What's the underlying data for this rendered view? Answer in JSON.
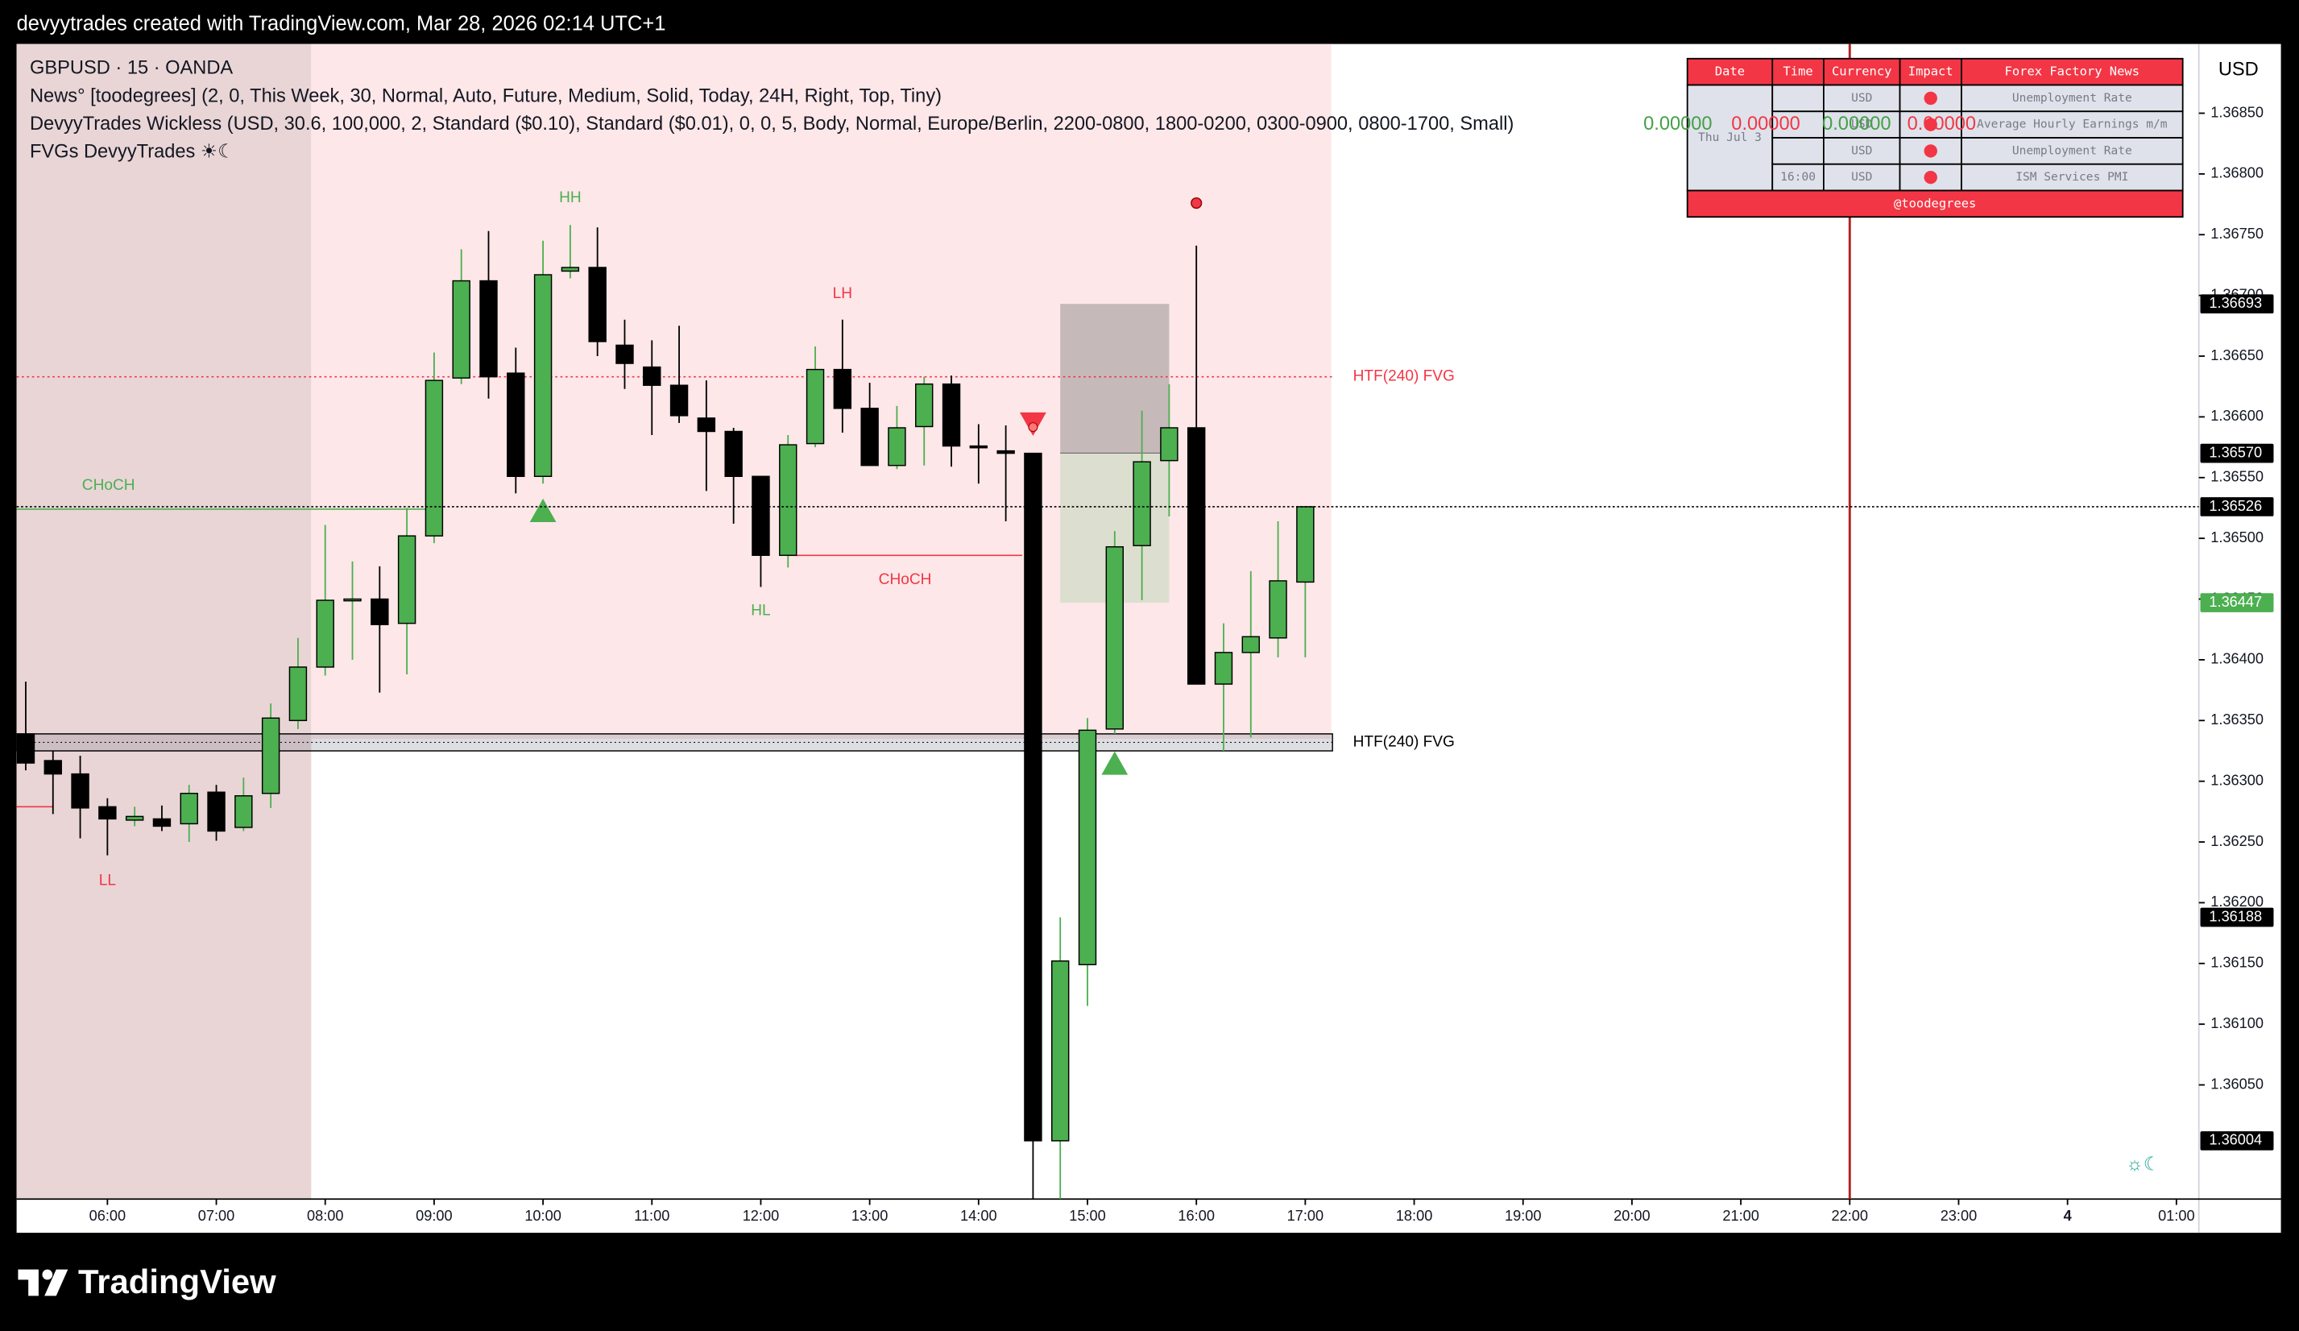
{
  "header": {
    "text": "devyytrades created with TradingView.com, Mar 28, 2026 02:14 UTC+1"
  },
  "chart_data": {
    "type": "candlestick",
    "title": "GBPUSD · 15 · OANDA",
    "legend_lines": [
      "News° [toodegrees] (2, 0, This Week, 30, Normal, Auto, Future, Medium, Solid, Today, 24H, Right, Top, Tiny)",
      "DevyyTrades Wickless (USD, 30.6, 100,000, 2, Standard ($0.10), Standard ($0.01), 0, 0, 5, Body, Normal, Europe/Berlin, 2200-0800, 1800-0200, 0300-0900, 0800-1700, Small)",
      "FVGs DevyyTrades ☀☾"
    ],
    "legend_values": [
      {
        "label": "0.00000",
        "color": "#43a047"
      },
      {
        "label": "0.00000",
        "color": "#f23645"
      },
      {
        "label": "0.00000",
        "color": "#43a047"
      },
      {
        "label": "0.00000",
        "color": "#f23645"
      }
    ],
    "currency": "USD",
    "up_color": "#4caf50",
    "down_color": "#000000",
    "x": [
      5.25,
      5.5,
      5.75,
      6,
      6.25,
      6.5,
      6.75,
      7,
      7.25,
      7.5,
      7.75,
      8,
      8.25,
      8.5,
      8.75,
      9,
      9.25,
      9.5,
      9.75,
      10,
      10.25,
      10.5,
      10.75,
      11,
      11.25,
      11.5,
      11.75,
      12,
      12.25,
      12.5,
      12.75,
      13,
      13.25,
      13.5,
      13.75,
      14,
      14.25,
      14.5,
      14.75,
      15,
      15.25,
      15.5,
      15.75,
      16,
      16.25,
      16.5,
      16.75,
      17
    ],
    "open": [
      1.36339,
      1.36317,
      1.36306,
      1.36279,
      1.36268,
      1.36269,
      1.36265,
      1.36291,
      1.36262,
      1.3629,
      1.3635,
      1.36394,
      1.36449,
      1.3645,
      1.3643,
      1.36502,
      1.36632,
      1.36712,
      1.36636,
      1.36551,
      1.3672,
      1.36723,
      1.36659,
      1.36641,
      1.36626,
      1.36599,
      1.36588,
      1.36551,
      1.36486,
      1.36578,
      1.36639,
      1.36607,
      1.3656,
      1.36592,
      1.36627,
      1.36576,
      1.36572,
      1.3657,
      1.36004,
      1.36149,
      1.36343,
      1.36494,
      1.36564,
      1.36591,
      1.3638,
      1.36406,
      1.36418,
      1.36464
    ],
    "high": [
      1.36382,
      1.36325,
      1.36321,
      1.36286,
      1.36279,
      1.3628,
      1.36297,
      1.36297,
      1.36303,
      1.36364,
      1.36418,
      1.36511,
      1.36481,
      1.36477,
      1.36525,
      1.36653,
      1.36738,
      1.36753,
      1.36657,
      1.36745,
      1.36758,
      1.36756,
      1.3668,
      1.36663,
      1.36675,
      1.3663,
      1.36591,
      1.36551,
      1.36585,
      1.36658,
      1.3668,
      1.36628,
      1.36609,
      1.36633,
      1.36634,
      1.36594,
      1.36593,
      1.3657,
      1.36188,
      1.36352,
      1.36506,
      1.36605,
      1.36627,
      1.36741,
      1.3643,
      1.36473,
      1.36514,
      1.36526
    ],
    "low": [
      1.36309,
      1.36273,
      1.36253,
      1.36239,
      1.36263,
      1.36259,
      1.3625,
      1.36251,
      1.36259,
      1.36278,
      1.36343,
      1.36387,
      1.364,
      1.36373,
      1.36388,
      1.36496,
      1.36627,
      1.36615,
      1.36537,
      1.36545,
      1.36714,
      1.3665,
      1.36623,
      1.36585,
      1.36595,
      1.36539,
      1.36512,
      1.3646,
      1.36476,
      1.36575,
      1.36587,
      1.3656,
      1.36557,
      1.3656,
      1.36559,
      1.36545,
      1.36514,
      1.35956,
      1.35956,
      1.36115,
      1.36339,
      1.36449,
      1.36518,
      1.3638,
      1.36325,
      1.36336,
      1.36402,
      1.36402
    ],
    "close": [
      1.36315,
      1.36306,
      1.36278,
      1.36269,
      1.36271,
      1.36263,
      1.3629,
      1.36259,
      1.36288,
      1.36352,
      1.36394,
      1.36449,
      1.3645,
      1.36429,
      1.36502,
      1.3663,
      1.36712,
      1.36633,
      1.36551,
      1.36717,
      1.36723,
      1.36662,
      1.36644,
      1.36626,
      1.36601,
      1.36588,
      1.36551,
      1.36486,
      1.36577,
      1.36639,
      1.36607,
      1.3656,
      1.36591,
      1.36627,
      1.36576,
      1.36575,
      1.3657,
      1.36004,
      1.36152,
      1.36342,
      1.36493,
      1.36563,
      1.36591,
      1.3638,
      1.36406,
      1.36419,
      1.36465,
      1.36526
    ],
    "xlim": [
      5.166,
      25.206
    ],
    "xticks": [
      {
        "value": 6,
        "label": "06:00"
      },
      {
        "value": 7,
        "label": "07:00"
      },
      {
        "value": 8,
        "label": "08:00"
      },
      {
        "value": 9,
        "label": "09:00"
      },
      {
        "value": 10,
        "label": "10:00"
      },
      {
        "value": 11,
        "label": "11:00"
      },
      {
        "value": 12,
        "label": "12:00"
      },
      {
        "value": 13,
        "label": "13:00"
      },
      {
        "value": 14,
        "label": "14:00"
      },
      {
        "value": 15,
        "label": "15:00"
      },
      {
        "value": 16,
        "label": "16:00"
      },
      {
        "value": 17,
        "label": "17:00"
      },
      {
        "value": 18,
        "label": "18:00"
      },
      {
        "value": 19,
        "label": "19:00"
      },
      {
        "value": 20,
        "label": "20:00"
      },
      {
        "value": 21,
        "label": "21:00"
      },
      {
        "value": 22,
        "label": "22:00"
      },
      {
        "value": 23,
        "label": "23:00"
      },
      {
        "value": 24,
        "label": "4"
      },
      {
        "value": 25,
        "label": "01:00"
      }
    ],
    "ylim": [
      1.35956,
      1.36907
    ],
    "yticks": [
      {
        "value": 1.3685,
        "label": "1.36850"
      },
      {
        "value": 1.368,
        "label": "1.36800"
      },
      {
        "value": 1.3675,
        "label": "1.36750"
      },
      {
        "value": 1.367,
        "label": "1.36700"
      },
      {
        "value": 1.3665,
        "label": "1.36650"
      },
      {
        "value": 1.366,
        "label": "1.36600"
      },
      {
        "value": 1.3655,
        "label": "1.36550"
      },
      {
        "value": 1.365,
        "label": "1.36500"
      },
      {
        "value": 1.3645,
        "label": "1.36450"
      },
      {
        "value": 1.364,
        "label": "1.36400"
      },
      {
        "value": 1.3635,
        "label": "1.36350"
      },
      {
        "value": 1.363,
        "label": "1.36300"
      },
      {
        "value": 1.3625,
        "label": "1.36250"
      },
      {
        "value": 1.362,
        "label": "1.36200"
      },
      {
        "value": 1.3615,
        "label": "1.36150"
      },
      {
        "value": 1.361,
        "label": "1.36100"
      },
      {
        "value": 1.3605,
        "label": "1.36050"
      }
    ],
    "price_labels": [
      {
        "value": 1.36693,
        "color": "#000000"
      },
      {
        "value": 1.3657,
        "label": "1.36570",
        "color": "#000000"
      },
      {
        "value": 1.36526,
        "color": "#000000",
        "line": "dotted"
      },
      {
        "value": 1.36447,
        "color": "#4caf50"
      },
      {
        "value": 1.36188,
        "color": "#000000"
      },
      {
        "value": 1.36004,
        "color": "#000000"
      }
    ],
    "levels": [
      {
        "price": 1.36633,
        "from": 5.166,
        "to": 17.25,
        "color": "#f23645",
        "style": "dotted",
        "label": "HTF(240) FVG",
        "label_side": "right"
      },
      {
        "price": 1.36524,
        "from": 3.1,
        "to": 8.92,
        "color": "#4caf50",
        "style": "solid",
        "label": "CHoCH",
        "label_side": "above"
      },
      {
        "price": 1.36486,
        "from": 12.25,
        "to": 14.4,
        "color": "#f23645",
        "style": "solid",
        "label": "CHoCH",
        "label_side": "below"
      },
      {
        "price": 1.36279,
        "from": 5.166,
        "to": 5.5,
        "color": "#f23645",
        "style": "solid"
      }
    ],
    "bands": [
      {
        "top": 1.36339,
        "bottom": 1.36325,
        "from": 5.166,
        "to": 17.25,
        "color": "#000000",
        "label": "HTF(240) FVG"
      }
    ],
    "boxes": [
      {
        "top": 1.36693,
        "bottom": 1.3657,
        "from": 14.75,
        "to": 15.75,
        "color": "#c6b9ba"
      },
      {
        "top": 1.3657,
        "bottom": 1.36447,
        "from": 14.75,
        "to": 15.75,
        "color": "#dcdfcf"
      }
    ],
    "swing_labels": [
      {
        "text": "HH",
        "x": 10.25,
        "price": 1.3678,
        "color": "#4caf50"
      },
      {
        "text": "LH",
        "x": 12.75,
        "price": 1.36701,
        "color": "#f23645"
      },
      {
        "text": "HL",
        "x": 12.0,
        "price": 1.3644,
        "color": "#4caf50"
      },
      {
        "text": "LL",
        "x": 6.0,
        "price": 1.36218,
        "color": "#f23645"
      }
    ],
    "markers": [
      {
        "shape": "triangle-up",
        "x": 10.0,
        "price": 1.36523,
        "color": "#4caf50"
      },
      {
        "shape": "triangle-up",
        "x": 15.25,
        "price": 1.36315,
        "color": "#4caf50"
      },
      {
        "shape": "triangle-down",
        "x": 14.5,
        "price": 1.36594,
        "color": "#f23645"
      },
      {
        "shape": "dot",
        "x": 16.0,
        "price": 1.36776,
        "color": "#f23645"
      }
    ],
    "vline": {
      "x": 22,
      "color": "#b22222"
    }
  },
  "news_table": {
    "columns": [
      "Date",
      "Time",
      "Currency",
      "Impact",
      "Forex Factory News"
    ],
    "date": "Thu Jul 3",
    "rows": [
      {
        "currency": "USD",
        "news": "Unemployment Rate"
      },
      {
        "currency": "USD",
        "news": "Average Hourly Earnings m/m"
      },
      {
        "currency": "USD",
        "news": "Unemployment Rate"
      },
      {
        "time": "16:00",
        "currency": "USD",
        "news": "ISM Services PMI"
      }
    ],
    "footer": "@toodegrees"
  },
  "footer": {
    "brand": "TradingView"
  }
}
